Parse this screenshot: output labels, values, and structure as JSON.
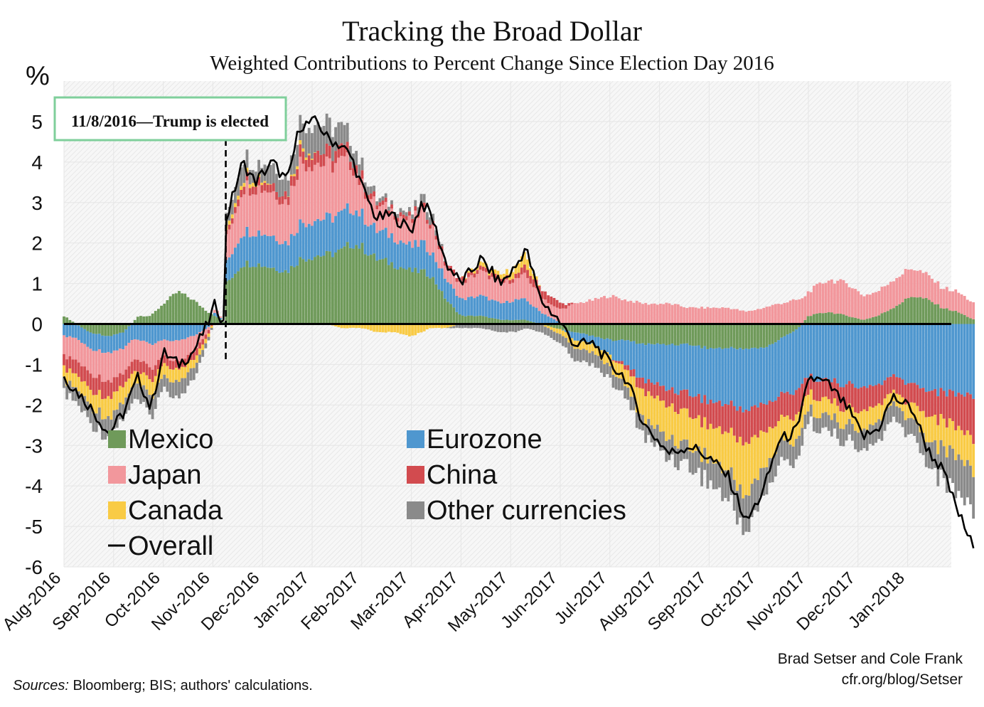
{
  "chart_data": {
    "type": "bar",
    "title": "Tracking the Broad Dollar",
    "subtitle": "Weighted Contributions to Percent Change Since Election Day 2016",
    "ylabel": "%",
    "ylim": [
      -6,
      6
    ],
    "yticks": [
      5,
      4,
      3,
      2,
      1,
      0,
      -1,
      -2,
      -3,
      -4,
      -5,
      -6
    ],
    "x_tick_labels": [
      "Aug-2016",
      "Sep-2016",
      "Oct-2016",
      "Nov-2016",
      "Dec-2016",
      "Jan-2017",
      "Feb-2017",
      "Mar-2017",
      "Apr-2017",
      "May-2017",
      "Jun-2017",
      "Jul-2017",
      "Aug-2017",
      "Sep-2017",
      "Oct-2017",
      "Nov-2017",
      "Dec-2017",
      "Jan-2018"
    ],
    "annotation": "11/8/2016—Trump is elected",
    "annotation_x_month": 3.26,
    "legend": {
      "placement": "bottom-left",
      "items": [
        {
          "label": "Mexico",
          "color": "#6f9a5a",
          "kind": "box"
        },
        {
          "label": "Eurozone",
          "color": "#4f97cf",
          "kind": "box"
        },
        {
          "label": "Japan",
          "color": "#f2979c",
          "kind": "box"
        },
        {
          "label": "China",
          "color": "#d24b4f",
          "kind": "box"
        },
        {
          "label": "Canada",
          "color": "#f9cb45",
          "kind": "box"
        },
        {
          "label": "Other currencies",
          "color": "#8a8a8a",
          "kind": "box"
        },
        {
          "label": "Overall",
          "color": "#000000",
          "kind": "line"
        }
      ]
    },
    "series_keys": [
      "Mexico",
      "Eurozone",
      "Japan",
      "China",
      "Canada",
      "Other currencies"
    ],
    "series_colors": [
      "#6f9a5a",
      "#4f97cf",
      "#f2979c",
      "#d24b4f",
      "#f9cb45",
      "#8a8a8a"
    ],
    "x_unit": "months since Aug-2016",
    "samples": [
      {
        "x": 0.0,
        "Mexico": 0.2,
        "Eurozone": -0.3,
        "Japan": -0.5,
        "China": -0.3,
        "Canada": -0.3,
        "Other currencies": -0.3,
        "overall": -1.3
      },
      {
        "x": 0.5,
        "Mexico": -0.2,
        "Eurozone": -0.4,
        "Japan": -0.6,
        "China": -0.4,
        "Canada": -0.4,
        "Other currencies": -0.4,
        "overall": -2.0
      },
      {
        "x": 0.9,
        "Mexico": -0.3,
        "Eurozone": -0.4,
        "Japan": -0.7,
        "China": -0.4,
        "Canada": -0.5,
        "Other currencies": -0.5,
        "overall": -2.7
      },
      {
        "x": 1.2,
        "Mexico": -0.2,
        "Eurozone": -0.4,
        "Japan": -0.6,
        "China": -0.3,
        "Canada": -0.4,
        "Other currencies": -0.4,
        "overall": -2.2
      },
      {
        "x": 1.5,
        "Mexico": 0.2,
        "Eurozone": -0.4,
        "Japan": -0.5,
        "China": -0.3,
        "Canada": -0.3,
        "Other currencies": -0.4,
        "overall": -1.3
      },
      {
        "x": 1.75,
        "Mexico": 0.2,
        "Eurozone": -0.5,
        "Japan": -0.6,
        "China": -0.3,
        "Canada": -0.4,
        "Other currencies": -0.5,
        "overall": -2.1
      },
      {
        "x": 2.0,
        "Mexico": 0.5,
        "Eurozone": -0.4,
        "Japan": -0.4,
        "China": -0.2,
        "Canada": -0.3,
        "Other currencies": -0.3,
        "overall": -0.7
      },
      {
        "x": 2.3,
        "Mexico": 0.8,
        "Eurozone": -0.4,
        "Japan": -0.5,
        "China": -0.2,
        "Canada": -0.3,
        "Other currencies": -0.4,
        "overall": -1.0
      },
      {
        "x": 2.6,
        "Mexico": 0.6,
        "Eurozone": -0.3,
        "Japan": -0.4,
        "China": -0.2,
        "Canada": -0.2,
        "Other currencies": -0.3,
        "overall": -0.7
      },
      {
        "x": 2.9,
        "Mexico": 0.3,
        "Eurozone": -0.1,
        "Japan": -0.1,
        "China": -0.1,
        "Canada": -0.1,
        "Other currencies": -0.1,
        "overall": 0.0
      },
      {
        "x": 3.05,
        "Mexico": 0.2,
        "Eurozone": 0.1,
        "Japan": 0.1,
        "China": 0.0,
        "Canada": 0.0,
        "Other currencies": 0.0,
        "overall": 0.5
      },
      {
        "x": 3.22,
        "Mexico": 0.05,
        "Eurozone": 0.0,
        "Japan": 0.0,
        "China": 0.0,
        "Canada": 0.0,
        "Other currencies": 0.0,
        "overall": 0.0
      },
      {
        "x": 3.27,
        "Mexico": 1.0,
        "Eurozone": 0.5,
        "Japan": 0.6,
        "China": 0.1,
        "Canada": 0.1,
        "Other currencies": 0.3,
        "overall": 2.6
      },
      {
        "x": 3.6,
        "Mexico": 1.5,
        "Eurozone": 0.8,
        "Japan": 1.1,
        "China": 0.2,
        "Canada": 0.1,
        "Other currencies": 0.5,
        "overall": 4.0
      },
      {
        "x": 3.85,
        "Mexico": 1.5,
        "Eurozone": 0.8,
        "Japan": 1.1,
        "China": 0.2,
        "Canada": 0.1,
        "Other currencies": 0.3,
        "overall": 3.5
      },
      {
        "x": 4.2,
        "Mexico": 1.4,
        "Eurozone": 0.8,
        "Japan": 1.1,
        "China": 0.2,
        "Canada": 0.0,
        "Other currencies": 0.5,
        "overall": 4.0
      },
      {
        "x": 4.5,
        "Mexico": 1.3,
        "Eurozone": 0.7,
        "Japan": 1.0,
        "China": 0.2,
        "Canada": 0.0,
        "Other currencies": 0.4,
        "overall": 3.5
      },
      {
        "x": 4.75,
        "Mexico": 1.6,
        "Eurozone": 0.9,
        "Japan": 1.5,
        "China": 0.3,
        "Canada": 0.1,
        "Other currencies": 0.6,
        "overall": 4.9
      },
      {
        "x": 5.1,
        "Mexico": 1.7,
        "Eurozone": 0.9,
        "Japan": 1.4,
        "China": 0.3,
        "Canada": 0.0,
        "Other currencies": 0.7,
        "overall": 5.0
      },
      {
        "x": 5.3,
        "Mexico": 1.7,
        "Eurozone": 0.9,
        "Japan": 1.3,
        "China": 0.3,
        "Canada": 0.0,
        "Other currencies": 0.7,
        "overall": 4.6
      },
      {
        "x": 5.6,
        "Mexico": 1.8,
        "Eurozone": 0.9,
        "Japan": 1.3,
        "China": 0.3,
        "Canada": -0.1,
        "Other currencies": 0.5,
        "overall": 4.4
      },
      {
        "x": 5.8,
        "Mexico": 2.0,
        "Eurozone": 0.9,
        "Japan": 1.1,
        "China": 0.2,
        "Canada": -0.1,
        "Other currencies": 0.4,
        "overall": 4.1
      },
      {
        "x": 6.0,
        "Mexico": 1.9,
        "Eurozone": 0.8,
        "Japan": 0.7,
        "China": 0.2,
        "Canada": -0.1,
        "Other currencies": 0.3,
        "overall": 3.4
      },
      {
        "x": 6.3,
        "Mexico": 1.6,
        "Eurozone": 0.7,
        "Japan": 0.6,
        "China": 0.1,
        "Canada": -0.2,
        "Other currencies": 0.1,
        "overall": 2.6
      },
      {
        "x": 6.6,
        "Mexico": 1.5,
        "Eurozone": 0.7,
        "Japan": 0.6,
        "China": 0.1,
        "Canada": -0.2,
        "Other currencies": 0.1,
        "overall": 2.7
      },
      {
        "x": 7.0,
        "Mexico": 1.3,
        "Eurozone": 0.6,
        "Japan": 0.6,
        "China": 0.1,
        "Canada": -0.3,
        "Other currencies": 0.1,
        "overall": 2.3
      },
      {
        "x": 7.2,
        "Mexico": 1.3,
        "Eurozone": 0.7,
        "Japan": 0.8,
        "China": 0.1,
        "Canada": -0.2,
        "Other currencies": 0.2,
        "overall": 3.0
      },
      {
        "x": 7.4,
        "Mexico": 1.2,
        "Eurozone": 0.6,
        "Japan": 0.7,
        "China": 0.1,
        "Canada": -0.1,
        "Other currencies": 0.2,
        "overall": 2.7
      },
      {
        "x": 7.7,
        "Mexico": 0.6,
        "Eurozone": 0.5,
        "Japan": 0.3,
        "China": 0.1,
        "Canada": -0.1,
        "Other currencies": 0.0,
        "overall": 1.5
      },
      {
        "x": 8.0,
        "Mexico": 0.2,
        "Eurozone": 0.4,
        "Japan": 0.4,
        "China": 0.1,
        "Canada": 0.0,
        "Other currencies": -0.1,
        "overall": 1.0
      },
      {
        "x": 8.4,
        "Mexico": 0.2,
        "Eurozone": 0.5,
        "Japan": 0.6,
        "China": 0.1,
        "Canada": 0.1,
        "Other currencies": -0.1,
        "overall": 1.6
      },
      {
        "x": 8.8,
        "Mexico": 0.1,
        "Eurozone": 0.4,
        "Japan": 0.5,
        "China": 0.1,
        "Canada": 0.1,
        "Other currencies": -0.2,
        "overall": 1.0
      },
      {
        "x": 9.1,
        "Mexico": 0.1,
        "Eurozone": 0.5,
        "Japan": 0.5,
        "China": 0.1,
        "Canada": 0.2,
        "Other currencies": -0.2,
        "overall": 1.4
      },
      {
        "x": 9.3,
        "Mexico": 0.1,
        "Eurozone": 0.5,
        "Japan": 0.6,
        "China": 0.2,
        "Canada": 0.3,
        "Other currencies": -0.1,
        "overall": 1.9
      },
      {
        "x": 9.6,
        "Mexico": 0.0,
        "Eurozone": 0.3,
        "Japan": 0.4,
        "China": 0.2,
        "Canada": 0.0,
        "Other currencies": -0.2,
        "overall": 0.6
      },
      {
        "x": 9.9,
        "Mexico": -0.1,
        "Eurozone": 0.1,
        "Japan": 0.3,
        "China": 0.2,
        "Canada": -0.1,
        "Other currencies": -0.2,
        "overall": 0.2
      },
      {
        "x": 10.3,
        "Mexico": -0.2,
        "Eurozone": -0.2,
        "Japan": 0.5,
        "China": 0.0,
        "Canada": -0.2,
        "Other currencies": -0.3,
        "overall": -0.5
      },
      {
        "x": 10.7,
        "Mexico": -0.3,
        "Eurozone": -0.2,
        "Japan": 0.6,
        "China": 0.0,
        "Canada": -0.2,
        "Other currencies": -0.3,
        "overall": -0.5
      },
      {
        "x": 11.0,
        "Mexico": -0.4,
        "Eurozone": -0.4,
        "Japan": 0.7,
        "China": 0.0,
        "Canada": -0.3,
        "Other currencies": -0.3,
        "overall": -1.0
      },
      {
        "x": 11.3,
        "Mexico": -0.4,
        "Eurozone": -0.6,
        "Japan": 0.6,
        "China": -0.1,
        "Canada": -0.4,
        "Other currencies": -0.3,
        "overall": -1.3
      },
      {
        "x": 11.7,
        "Mexico": -0.5,
        "Eurozone": -0.9,
        "Japan": 0.5,
        "China": -0.3,
        "Canada": -0.7,
        "Other currencies": -0.4,
        "overall": -2.5
      },
      {
        "x": 12.2,
        "Mexico": -0.5,
        "Eurozone": -1.1,
        "Japan": 0.5,
        "China": -0.4,
        "Canada": -0.8,
        "Other currencies": -0.5,
        "overall": -3.2
      },
      {
        "x": 12.6,
        "Mexico": -0.5,
        "Eurozone": -1.2,
        "Japan": 0.4,
        "China": -0.5,
        "Canada": -0.8,
        "Other currencies": -0.5,
        "overall": -3.0
      },
      {
        "x": 13.0,
        "Mexico": -0.6,
        "Eurozone": -1.3,
        "Japan": 0.4,
        "China": -0.6,
        "Canada": -0.8,
        "Other currencies": -0.6,
        "overall": -3.3
      },
      {
        "x": 13.4,
        "Mexico": -0.6,
        "Eurozone": -1.4,
        "Japan": 0.4,
        "China": -0.7,
        "Canada": -1.0,
        "Other currencies": -0.7,
        "overall": -3.8
      },
      {
        "x": 13.75,
        "Mexico": -0.6,
        "Eurozone": -1.5,
        "Japan": 0.3,
        "China": -0.8,
        "Canada": -1.3,
        "Other currencies": -0.9,
        "overall": -4.9
      },
      {
        "x": 14.1,
        "Mexico": -0.6,
        "Eurozone": -1.4,
        "Japan": 0.4,
        "China": -0.7,
        "Canada": -0.9,
        "Other currencies": -0.7,
        "overall": -4.1
      },
      {
        "x": 14.4,
        "Mexico": -0.4,
        "Eurozone": -1.4,
        "Japan": 0.5,
        "China": -0.6,
        "Canada": -0.6,
        "Other currencies": -0.5,
        "overall": -2.9
      },
      {
        "x": 14.8,
        "Mexico": -0.1,
        "Eurozone": -1.5,
        "Japan": 0.6,
        "China": -0.6,
        "Canada": -0.6,
        "Other currencies": -0.5,
        "overall": -2.6
      },
      {
        "x": 15.0,
        "Mexico": 0.2,
        "Eurozone": -1.3,
        "Japan": 0.6,
        "China": -0.4,
        "Canada": -0.4,
        "Other currencies": -0.3,
        "overall": -1.3
      },
      {
        "x": 15.4,
        "Mexico": 0.3,
        "Eurozone": -1.4,
        "Japan": 0.8,
        "China": -0.5,
        "Canada": -0.4,
        "Other currencies": -0.4,
        "overall": -1.5
      },
      {
        "x": 15.8,
        "Mexico": 0.2,
        "Eurozone": -1.5,
        "Japan": 0.8,
        "China": -0.6,
        "Canada": -0.4,
        "Other currencies": -0.4,
        "overall": -2.1
      },
      {
        "x": 16.1,
        "Mexico": 0.1,
        "Eurozone": -1.6,
        "Japan": 0.6,
        "China": -0.6,
        "Canada": -0.5,
        "Other currencies": -0.5,
        "overall": -2.8
      },
      {
        "x": 16.4,
        "Mexico": 0.2,
        "Eurozone": -1.5,
        "Japan": 0.6,
        "China": -0.5,
        "Canada": -0.4,
        "Other currencies": -0.5,
        "overall": -2.6
      },
      {
        "x": 16.7,
        "Mexico": 0.4,
        "Eurozone": -1.3,
        "Japan": 0.7,
        "China": -0.4,
        "Canada": -0.3,
        "Other currencies": -0.4,
        "overall": -1.8
      },
      {
        "x": 17.1,
        "Mexico": 0.7,
        "Eurozone": -1.5,
        "Japan": 0.7,
        "China": -0.5,
        "Canada": -0.4,
        "Other currencies": -0.4,
        "overall": -2.1
      },
      {
        "x": 17.4,
        "Mexico": 0.6,
        "Eurozone": -1.6,
        "Japan": 0.6,
        "China": -0.6,
        "Canada": -0.6,
        "Other currencies": -0.6,
        "overall": -3.1
      },
      {
        "x": 17.7,
        "Mexico": 0.4,
        "Eurozone": -1.7,
        "Japan": 0.5,
        "China": -0.7,
        "Canada": -0.7,
        "Other currencies": -0.8,
        "overall": -3.6
      },
      {
        "x": 18.0,
        "Mexico": 0.3,
        "Eurozone": -1.7,
        "Japan": 0.5,
        "China": -0.8,
        "Canada": -0.7,
        "Other currencies": -0.9,
        "overall": -4.6
      },
      {
        "x": 18.35,
        "Mexico": 0.1,
        "Eurozone": -1.8,
        "Japan": 0.4,
        "China": -1.1,
        "Canada": -0.8,
        "Other currencies": -1.0,
        "overall": -5.6
      }
    ]
  },
  "credits": {
    "authors": "Brad Setser and Cole Frank",
    "url": "cfr.org/blog/Setser",
    "sources_label": "Sources:",
    "sources_text": " Bloomberg; BIS; authors' calculations."
  }
}
